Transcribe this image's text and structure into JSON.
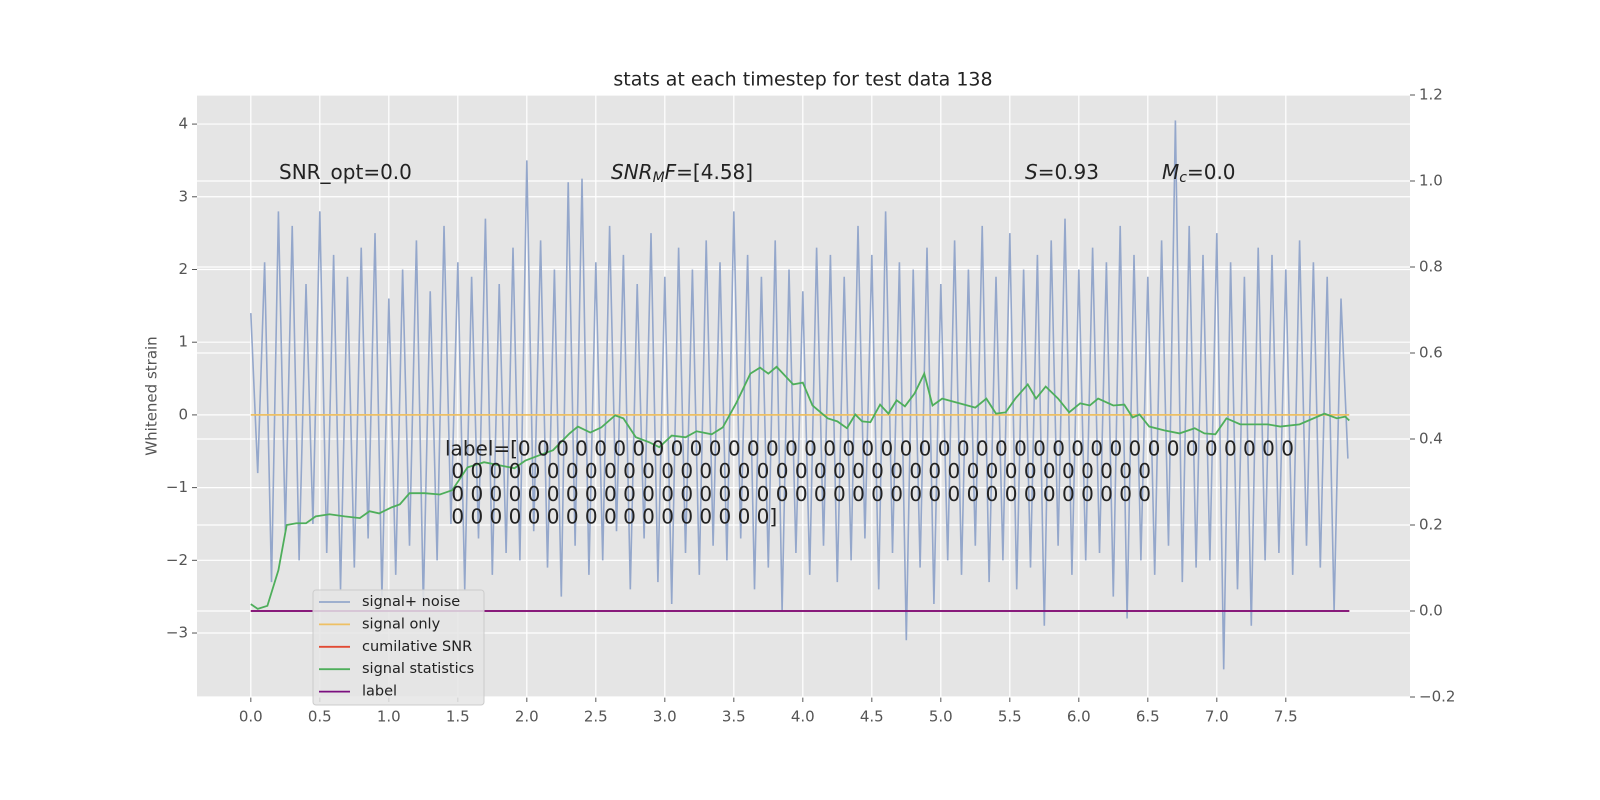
{
  "chart_data": {
    "type": "line",
    "title": "stats at each timestep for test data 138",
    "ylabel": "Whitened strain",
    "xlim": [
      -0.39,
      8.4
    ],
    "ylim": [
      -3.88,
      4.4
    ],
    "y2lim": [
      -0.2,
      1.2
    ],
    "grid": true,
    "xticks": [
      {
        "value": 0,
        "label": "0.0"
      },
      0.5,
      {
        "value": 1,
        "label": "1.0"
      },
      1.5,
      {
        "value": 2,
        "label": "2.0"
      },
      2.5,
      {
        "value": 3,
        "label": "3.0"
      },
      3.5,
      {
        "value": 4,
        "label": "4.0"
      },
      4.5,
      {
        "value": 5,
        "label": "5.0"
      },
      5.5,
      {
        "value": 6,
        "label": "6.0"
      },
      6.5,
      {
        "value": 7,
        "label": "7.0"
      },
      7.5
    ],
    "yticks": [
      {
        "value": -3,
        "label": "−3"
      },
      {
        "value": -2,
        "label": "−2"
      },
      {
        "value": -1,
        "label": "−1"
      },
      0,
      1,
      2,
      3,
      4
    ],
    "y2ticks": [
      {
        "value": -0.2,
        "label": "−0.2"
      },
      {
        "value": 0,
        "label": "0.0"
      },
      0.2,
      0.4,
      0.6,
      0.8,
      {
        "value": 1,
        "label": "1.0"
      },
      1.2
    ],
    "series": [
      {
        "name": "signal+ noise",
        "color": "#94a7cb",
        "x": [
          0,
          0.05,
          0.1,
          0.15,
          0.2,
          0.25,
          0.3,
          0.35,
          0.4,
          0.45,
          0.5,
          0.55,
          0.6,
          0.65,
          0.7,
          0.75,
          0.8,
          0.85,
          0.9,
          0.95,
          1,
          1.05,
          1.1,
          1.15,
          1.2,
          1.25,
          1.3,
          1.35,
          1.4,
          1.45,
          1.5,
          1.55,
          1.6,
          1.65,
          1.7,
          1.75,
          1.8,
          1.85,
          1.9,
          1.95,
          2,
          2.05,
          2.1,
          2.15,
          2.2,
          2.25,
          2.3,
          2.35,
          2.4,
          2.45,
          2.5,
          2.55,
          2.6,
          2.65,
          2.7,
          2.75,
          2.8,
          2.85,
          2.9,
          2.95,
          3,
          3.05,
          3.1,
          3.15,
          3.2,
          3.25,
          3.3,
          3.35,
          3.4,
          3.45,
          3.5,
          3.55,
          3.6,
          3.65,
          3.7,
          3.75,
          3.8,
          3.85,
          3.9,
          3.95,
          4,
          4.05,
          4.1,
          4.15,
          4.2,
          4.25,
          4.3,
          4.35,
          4.4,
          4.45,
          4.5,
          4.55,
          4.6,
          4.65,
          4.7,
          4.75,
          4.8,
          4.85,
          4.9,
          4.95,
          5,
          5.05,
          5.1,
          5.15,
          5.2,
          5.25,
          5.3,
          5.35,
          5.4,
          5.45,
          5.5,
          5.55,
          5.6,
          5.65,
          5.7,
          5.75,
          5.8,
          5.85,
          5.9,
          5.95,
          6,
          6.05,
          6.1,
          6.15,
          6.2,
          6.25,
          6.3,
          6.35,
          6.4,
          6.45,
          6.5,
          6.55,
          6.6,
          6.65,
          6.7,
          6.75,
          6.8,
          6.85,
          6.9,
          6.95,
          7,
          7.05,
          7.1,
          7.15,
          7.2,
          7.25,
          7.3,
          7.35,
          7.4,
          7.45,
          7.5,
          7.55,
          7.6,
          7.65,
          7.7,
          7.75,
          7.8,
          7.85,
          7.9,
          7.95
        ],
        "values": [
          1.4,
          -0.8,
          2.1,
          -2.3,
          2.8,
          -1.6,
          2.6,
          -2.0,
          1.8,
          -1.5,
          2.8,
          -1.9,
          2.2,
          -2.4,
          1.9,
          -2.1,
          2.3,
          -1.7,
          2.5,
          -2.5,
          1.6,
          -2.2,
          2.0,
          -1.8,
          2.4,
          -2.6,
          1.7,
          -2.0,
          2.6,
          -1.5,
          2.1,
          -2.4,
          1.9,
          -1.7,
          2.7,
          -2.2,
          1.8,
          -1.9,
          2.3,
          -2.0,
          3.5,
          -1.6,
          2.4,
          -2.1,
          2.0,
          -2.5,
          3.2,
          -1.8,
          3.25,
          -2.2,
          2.1,
          -2.0,
          2.6,
          -1.6,
          2.2,
          -2.4,
          1.8,
          -1.7,
          2.5,
          -2.3,
          1.9,
          -2.6,
          2.3,
          -1.9,
          2.0,
          -2.2,
          2.4,
          -1.8,
          2.1,
          -2.0,
          2.8,
          -1.7,
          2.2,
          -2.4,
          1.9,
          -2.1,
          2.4,
          -2.7,
          2.0,
          -1.9,
          1.7,
          -2.2,
          2.3,
          -1.8,
          2.2,
          -2.3,
          1.9,
          -2.0,
          2.6,
          -1.7,
          2.2,
          -2.4,
          2.8,
          -1.9,
          2.1,
          -3.1,
          2.0,
          -2.1,
          2.3,
          -2.6,
          1.8,
          -2.0,
          2.4,
          -2.2,
          2.0,
          -1.8,
          2.6,
          -2.3,
          1.9,
          -2.0,
          2.5,
          -2.4,
          2.0,
          -2.1,
          2.2,
          -2.9,
          2.4,
          -1.8,
          2.7,
          -2.2,
          2.0,
          -2.0,
          2.3,
          -1.9,
          2.1,
          -2.5,
          2.6,
          -2.8,
          2.2,
          -2.0,
          1.9,
          -2.2,
          2.4,
          -1.8,
          4.05,
          -2.3,
          2.6,
          -2.1,
          2.2,
          -2.0,
          2.5,
          -3.5,
          2.1,
          -2.4,
          1.9,
          -2.9,
          2.3,
          -2.0,
          2.2,
          -1.9,
          2.0,
          -2.2,
          2.4,
          -1.8,
          2.1,
          -2.1,
          1.9,
          -2.7,
          1.6,
          -0.6
        ]
      },
      {
        "name": "signal only",
        "color": "#eec064",
        "x": [
          0,
          7.96
        ],
        "values": [
          0,
          0
        ]
      },
      {
        "name": "cumilative SNR",
        "color": "#e24a33",
        "axis": "y2",
        "x": [
          0,
          7.96
        ],
        "values": [
          0,
          0
        ]
      },
      {
        "name": "signal statistics",
        "color": "#4eae5b",
        "axis": "y2",
        "x": [
          0,
          0.05,
          0.12,
          0.2,
          0.26,
          0.33,
          0.4,
          0.47,
          0.57,
          0.68,
          0.79,
          0.86,
          0.93,
          1.02,
          1.08,
          1.15,
          1.26,
          1.37,
          1.46,
          1.57,
          1.69,
          1.8,
          1.91,
          1.99,
          2.09,
          2.19,
          2.31,
          2.37,
          2.46,
          2.54,
          2.64,
          2.7,
          2.79,
          2.89,
          2.96,
          3.05,
          3.15,
          3.23,
          3.34,
          3.42,
          3.52,
          3.62,
          3.69,
          3.75,
          3.81,
          3.93,
          4.0,
          4.07,
          4.18,
          4.25,
          4.32,
          4.38,
          4.43,
          4.49,
          4.56,
          4.62,
          4.68,
          4.74,
          4.81,
          4.88,
          4.94,
          5.01,
          5.25,
          5.33,
          5.4,
          5.47,
          5.54,
          5.63,
          5.69,
          5.76,
          5.85,
          5.93,
          6.01,
          6.08,
          6.14,
          6.25,
          6.33,
          6.39,
          6.44,
          6.51,
          6.62,
          6.73,
          6.84,
          6.91,
          6.99,
          7.07,
          7.17,
          7.28,
          7.37,
          7.46,
          7.6,
          7.78,
          7.87,
          7.93,
          7.96
        ],
        "values": [
          0.016,
          0.005,
          0.012,
          0.095,
          0.2,
          0.204,
          0.204,
          0.22,
          0.225,
          0.22,
          0.216,
          0.232,
          0.227,
          0.241,
          0.248,
          0.274,
          0.274,
          0.271,
          0.281,
          0.334,
          0.346,
          0.339,
          0.332,
          0.35,
          0.362,
          0.374,
          0.413,
          0.429,
          0.415,
          0.427,
          0.455,
          0.448,
          0.404,
          0.392,
          0.381,
          0.408,
          0.404,
          0.418,
          0.411,
          0.427,
          0.485,
          0.552,
          0.566,
          0.552,
          0.568,
          0.527,
          0.531,
          0.478,
          0.448,
          0.441,
          0.425,
          0.457,
          0.441,
          0.439,
          0.48,
          0.459,
          0.49,
          0.476,
          0.506,
          0.552,
          0.478,
          0.494,
          0.473,
          0.494,
          0.459,
          0.462,
          0.494,
          0.527,
          0.494,
          0.522,
          0.494,
          0.462,
          0.483,
          0.478,
          0.494,
          0.478,
          0.48,
          0.45,
          0.457,
          0.429,
          0.42,
          0.413,
          0.425,
          0.413,
          0.411,
          0.448,
          0.434,
          0.434,
          0.434,
          0.429,
          0.434,
          0.459,
          0.448,
          0.452,
          0.443
        ]
      },
      {
        "name": "label",
        "color": "#7b0f7f",
        "axis": "y2",
        "x": [
          0,
          7.96
        ],
        "values": [
          0,
          0
        ]
      }
    ],
    "annotations": [
      {
        "parts": [
          {
            "text": "SNR_opt=0.0"
          }
        ]
      },
      {
        "parts": [
          {
            "text": "SNR",
            "italic": true
          },
          {
            "text": "M",
            "italic": true,
            "sub": true
          },
          {
            "text": "F",
            "italic": true
          },
          {
            "text": "=[4.58]"
          }
        ]
      },
      {
        "parts": [
          {
            "text": "S",
            "italic": true
          },
          {
            "text": "=0.93"
          }
        ]
      },
      {
        "parts": [
          {
            "text": "M",
            "italic": true
          },
          {
            "text": "c",
            "italic": true,
            "sub": true
          },
          {
            "text": "=0.0"
          }
        ]
      }
    ],
    "label_text": [
      "label=[0 0 0 0 0 0 0 0 0 0 0 0 0 0 0 0 0 0 0 0 0 0 0 0 0 0 0 0 0 0 0 0 0 0 0 0 0 0 0 0 0",
      " 0 0 0 0 0 0 0 0 0 0 0 0 0 0 0 0 0 0 0 0 0 0 0 0 0 0 0 0 0 0 0 0 0 0 0 0 0",
      " 0 0 0 0 0 0 0 0 0 0 0 0 0 0 0 0 0 0 0 0 0 0 0 0 0 0 0 0 0 0 0 0 0 0 0 0 0",
      " 0 0 0 0 0 0 0 0 0 0 0 0 0 0 0 0 0]"
    ]
  }
}
